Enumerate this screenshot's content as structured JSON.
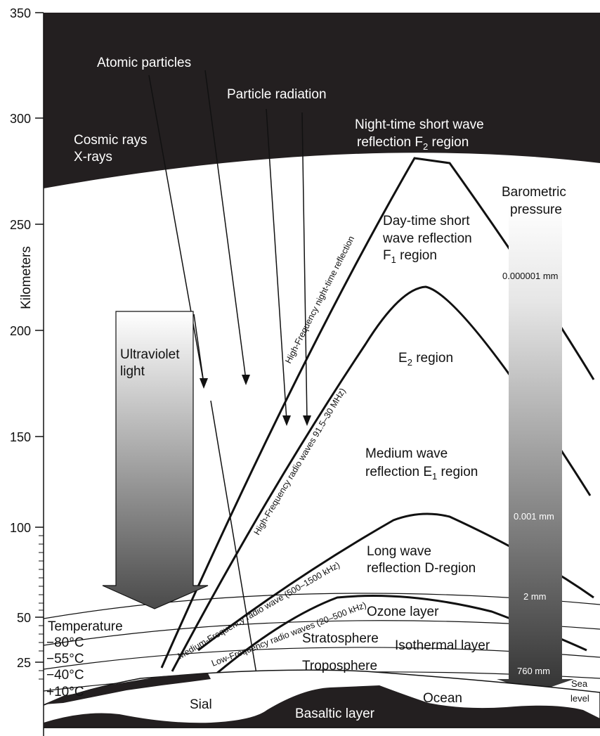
{
  "axis": {
    "label": "Kilometers",
    "ticks": [
      "350",
      "300",
      "250",
      "200",
      "150",
      "100",
      "50",
      "25"
    ]
  },
  "labels": {
    "atomic_particles": "Atomic particles",
    "particle_radiation": "Particle radiation",
    "cosmic_rays": "Cosmic rays",
    "x_rays": "X-rays",
    "night_f2_line1": "Night-time short wave",
    "night_f2_line2": "reflection F",
    "night_f2_sub": "2",
    "night_f2_tail": " region",
    "barometric_line1": "Barometric",
    "barometric_line2": "pressure",
    "day_f1_line1": "Day-time short",
    "day_f1_line2": "wave reflection",
    "day_f1_line3": "F",
    "day_f1_sub": "1",
    "day_f1_tail": " region",
    "ultraviolet_line1": "Ultraviolet",
    "ultraviolet_line2": "light",
    "e2_main": "E",
    "e2_sub": "2",
    "e2_tail": " region",
    "medium_line1": "Medium wave",
    "medium_line2": "reflection E",
    "medium_sub": "1",
    "medium_tail": " region",
    "long_line1": "Long wave",
    "long_line2": "reflection D-region",
    "ozone": "Ozone layer",
    "stratosphere": "Stratosphere",
    "isothermal": "Isothermal layer",
    "troposphere": "Troposphere",
    "temperature": "Temperature",
    "temp_1": "−80°C",
    "temp_2": "−55°C",
    "temp_3": "−40°C",
    "temp_4": "+10°C",
    "sial": "Sial",
    "basaltic": "Basaltic layer",
    "ocean": "Ocean",
    "sea": "Sea",
    "level": "level"
  },
  "wave_labels": {
    "hf_night": "High-Frequency night-time reflection",
    "hf_radio": "High-Frequency radio waves 91.5–30 MHz)",
    "mf_radio": "Medium-Frequency radio wave (500–1500 kHz)",
    "lf_radio": "Low-Frequency radio waves (20–500 kHz)"
  },
  "pressure": [
    "0.000001 mm",
    "0.001 mm",
    "2 mm",
    "760 mm"
  ]
}
